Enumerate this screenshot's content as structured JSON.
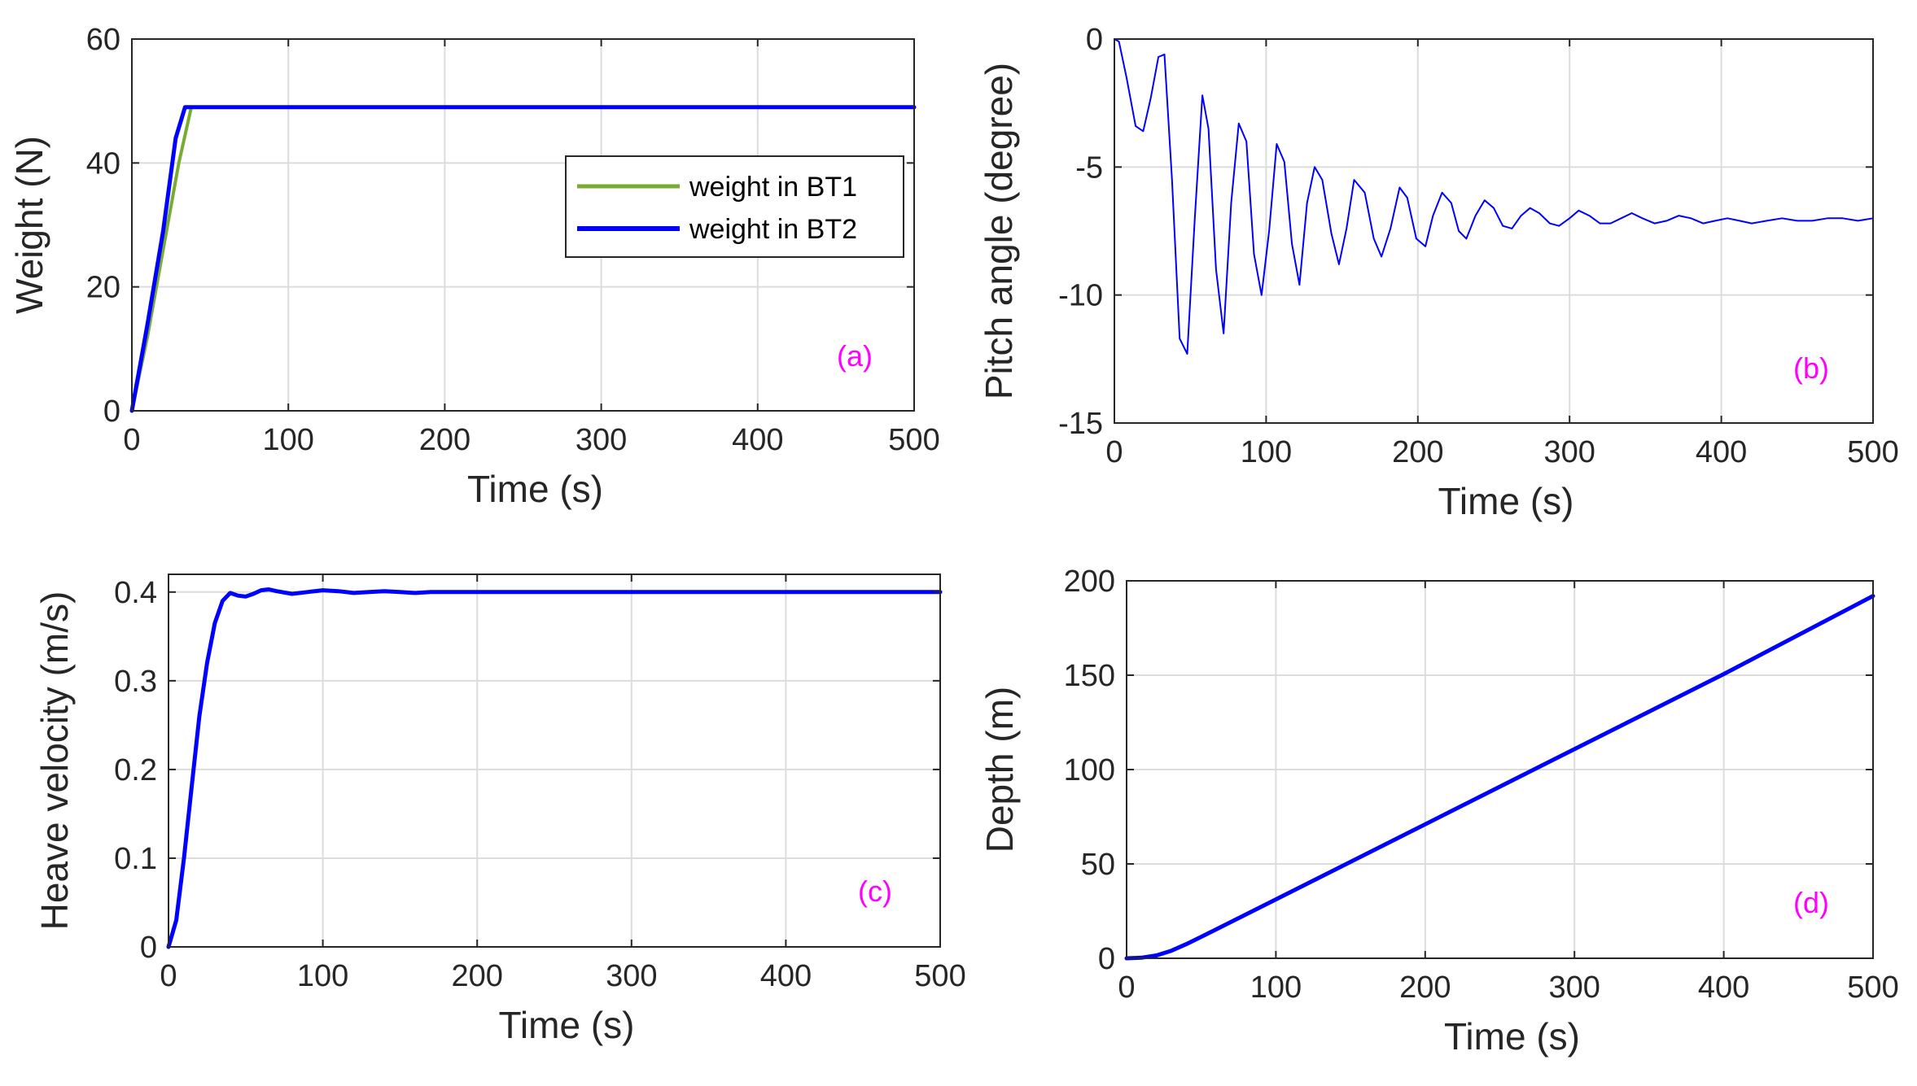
{
  "figure": {
    "panel_count": 4
  },
  "colors": {
    "series_blue": "#0000ff",
    "series_green": "#77ac30",
    "tag": "#ff00ff",
    "grid": "#dcdcdc",
    "axis": "#262626"
  },
  "chart_data": [
    {
      "id": "a",
      "type": "line",
      "tag": "(a)",
      "xlabel": "Time (s)",
      "ylabel": "Weight (N)",
      "xlim": [
        0,
        500
      ],
      "ylim": [
        0,
        60
      ],
      "xticks": [
        0,
        100,
        200,
        300,
        400,
        500
      ],
      "yticks": [
        0,
        20,
        40,
        60
      ],
      "grid": true,
      "legend": {
        "location": "center-right",
        "entries": [
          "weight in BT1",
          "weight in BT2"
        ]
      },
      "series": [
        {
          "name": "weight in BT1",
          "color": "#77ac30",
          "width": 4,
          "x": [
            0,
            10,
            20,
            30,
            38,
            500
          ],
          "y": [
            0,
            12,
            26,
            40,
            49,
            49
          ]
        },
        {
          "name": "weight in BT2",
          "color": "#0000ff",
          "width": 5,
          "x": [
            0,
            10,
            20,
            28,
            34,
            500
          ],
          "y": [
            0,
            14,
            29,
            44,
            49,
            49
          ]
        }
      ]
    },
    {
      "id": "b",
      "type": "line",
      "tag": "(b)",
      "xlabel": "Time (s)",
      "ylabel": "Pitch angle (degree)",
      "xlim": [
        0,
        500
      ],
      "ylim": [
        -15,
        0
      ],
      "xticks": [
        0,
        100,
        200,
        300,
        400,
        500
      ],
      "yticks": [
        -15,
        -10,
        -5,
        0
      ],
      "grid": true,
      "series": [
        {
          "name": "pitch angle",
          "color": "#0000ff",
          "width": 2,
          "x": [
            0,
            3,
            8,
            14,
            19,
            24,
            29,
            33,
            38,
            43,
            48,
            53,
            58,
            62,
            67,
            72,
            77,
            82,
            87,
            92,
            97,
            102,
            107,
            112,
            117,
            122,
            127,
            132,
            137,
            143,
            148,
            153,
            158,
            165,
            171,
            176,
            182,
            188,
            193,
            199,
            205,
            210,
            216,
            222,
            227,
            232,
            238,
            244,
            250,
            256,
            262,
            268,
            274,
            280,
            287,
            293,
            300,
            306,
            313,
            320,
            327,
            334,
            341,
            348,
            356,
            364,
            372,
            380,
            388,
            396,
            404,
            412,
            420,
            430,
            440,
            450,
            460,
            470,
            480,
            490,
            500
          ],
          "y": [
            0,
            -0.1,
            -1.5,
            -3.4,
            -3.6,
            -2.3,
            -0.7,
            -0.6,
            -5.5,
            -11.7,
            -12.3,
            -7.0,
            -2.2,
            -3.5,
            -9.0,
            -11.5,
            -6.4,
            -3.3,
            -4.0,
            -8.4,
            -10.0,
            -7.5,
            -4.1,
            -4.8,
            -8.0,
            -9.6,
            -6.4,
            -5.0,
            -5.5,
            -7.6,
            -8.8,
            -7.4,
            -5.5,
            -6.0,
            -7.8,
            -8.5,
            -7.4,
            -5.8,
            -6.2,
            -7.8,
            -8.1,
            -6.9,
            -6.0,
            -6.4,
            -7.5,
            -7.8,
            -6.9,
            -6.3,
            -6.6,
            -7.3,
            -7.4,
            -6.9,
            -6.6,
            -6.8,
            -7.2,
            -7.3,
            -7.0,
            -6.7,
            -6.9,
            -7.2,
            -7.2,
            -7.0,
            -6.8,
            -7.0,
            -7.2,
            -7.1,
            -6.9,
            -7.0,
            -7.2,
            -7.1,
            -7.0,
            -7.1,
            -7.2,
            -7.1,
            -7.0,
            -7.1,
            -7.1,
            -7.0,
            -7.0,
            -7.1,
            -7.0
          ]
        }
      ]
    },
    {
      "id": "c",
      "type": "line",
      "tag": "(c)",
      "xlabel": "Time (s)",
      "ylabel": "Heave velocity (m/s)",
      "xlim": [
        0,
        500
      ],
      "ylim": [
        0,
        0.42
      ],
      "xticks": [
        0,
        100,
        200,
        300,
        400,
        500
      ],
      "yticks": [
        0,
        0.1,
        0.2,
        0.3,
        0.4
      ],
      "grid": true,
      "series": [
        {
          "name": "heave velocity",
          "color": "#0000ff",
          "width": 5,
          "x": [
            0,
            5,
            10,
            15,
            20,
            25,
            30,
            35,
            40,
            45,
            50,
            55,
            60,
            65,
            70,
            80,
            90,
            100,
            110,
            120,
            130,
            140,
            150,
            160,
            170,
            180,
            200,
            250,
            300,
            350,
            400,
            450,
            500
          ],
          "y": [
            0,
            0.03,
            0.1,
            0.18,
            0.26,
            0.32,
            0.365,
            0.39,
            0.399,
            0.396,
            0.395,
            0.398,
            0.402,
            0.403,
            0.401,
            0.398,
            0.4,
            0.402,
            0.401,
            0.399,
            0.4,
            0.401,
            0.4,
            0.399,
            0.4,
            0.4,
            0.4,
            0.4,
            0.4,
            0.4,
            0.4,
            0.4,
            0.4
          ]
        }
      ]
    },
    {
      "id": "d",
      "type": "line",
      "tag": "(d)",
      "xlabel": "Time (s)",
      "ylabel": "Depth (m)",
      "xlim": [
        0,
        500
      ],
      "ylim": [
        0,
        200
      ],
      "xticks": [
        0,
        100,
        200,
        300,
        400,
        500
      ],
      "yticks": [
        0,
        50,
        100,
        150,
        200
      ],
      "grid": true,
      "series": [
        {
          "name": "depth",
          "color": "#0000ff",
          "width": 5,
          "x": [
            0,
            10,
            20,
            30,
            40,
            50,
            60,
            100,
            200,
            300,
            400,
            500
          ],
          "y": [
            0,
            0.3,
            1.5,
            4.0,
            7.5,
            11.4,
            15.3,
            31.2,
            71.0,
            110.8,
            150.6,
            192.0
          ]
        }
      ]
    }
  ]
}
